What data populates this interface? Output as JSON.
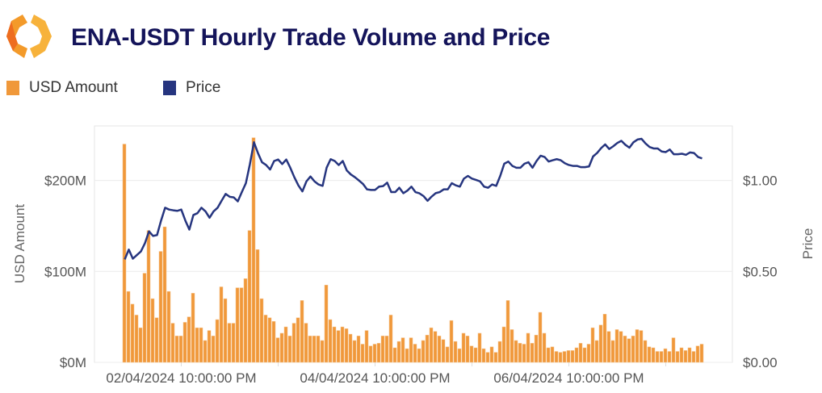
{
  "title": "ENA-USDT Hourly Trade Volume and Price",
  "legend": [
    {
      "label": "USD Amount",
      "color": "#f0983a"
    },
    {
      "label": "Price",
      "color": "#26357f"
    }
  ],
  "chart_data": {
    "type": "bar+line",
    "title": "ENA-USDT Hourly Trade Volume and Price",
    "ylabel_left": "USD Amount",
    "ylabel_right": "Price",
    "ylim_left": [
      0,
      260
    ],
    "ylim_right": [
      0,
      1.3
    ],
    "yticks_left": [
      {
        "value": 0,
        "label": "$0M"
      },
      {
        "value": 100,
        "label": "$100M"
      },
      {
        "value": 200,
        "label": "$200M"
      }
    ],
    "yticks_right": [
      {
        "value": 0,
        "label": "$0.00"
      },
      {
        "value": 0.5,
        "label": "$0.50"
      },
      {
        "value": 1.0,
        "label": "$1.00"
      }
    ],
    "xticks": [
      {
        "hour_index": 14,
        "label": "02/04/2024 10:00:00 PM"
      },
      {
        "hour_index": 62,
        "label": "04/04/2024 10:00:00 PM"
      },
      {
        "hour_index": 110,
        "label": "06/04/2024 10:00:00 PM"
      }
    ],
    "grid": "horizontal",
    "legend_position": "top-left",
    "series": [
      {
        "name": "USD Amount",
        "type": "bar",
        "unit": "USD millions",
        "color": "#f0983a",
        "values": [
          240,
          78,
          64,
          52,
          38,
          98,
          145,
          70,
          49,
          122,
          149,
          78,
          43,
          29,
          29,
          44,
          50,
          76,
          38,
          38,
          24,
          35,
          29,
          47,
          83,
          70,
          43,
          43,
          82,
          82,
          92,
          145,
          247,
          124,
          70,
          52,
          49,
          45,
          27,
          32,
          39,
          29,
          43,
          49,
          68,
          43,
          29,
          29,
          29,
          24,
          85,
          47,
          39,
          35,
          39,
          37,
          31,
          24,
          29,
          20,
          35,
          18,
          20,
          21,
          29,
          29,
          52,
          16,
          23,
          27,
          15,
          27,
          20,
          15,
          24,
          30,
          38,
          34,
          29,
          25,
          17,
          46,
          23,
          15,
          32,
          29,
          18,
          16,
          32,
          15,
          11,
          17,
          11,
          23,
          39,
          68,
          36,
          24,
          21,
          20,
          32,
          21,
          30,
          55,
          32,
          16,
          17,
          12,
          11,
          12,
          13,
          13,
          16,
          21,
          16,
          20,
          38,
          24,
          41,
          53,
          34,
          24,
          36,
          34,
          29,
          26,
          29,
          36,
          35,
          24,
          17,
          16,
          12,
          12,
          15,
          12,
          27,
          12,
          16,
          13,
          16,
          12,
          18,
          20
        ]
      },
      {
        "name": "Price",
        "type": "line",
        "unit": "USD",
        "color": "#26357f",
        "values": [
          0.566,
          0.62,
          0.57,
          0.59,
          0.61,
          0.655,
          0.72,
          0.695,
          0.7,
          0.78,
          0.85,
          0.84,
          0.836,
          0.833,
          0.84,
          0.78,
          0.73,
          0.81,
          0.82,
          0.85,
          0.83,
          0.795,
          0.83,
          0.85,
          0.889,
          0.926,
          0.91,
          0.907,
          0.885,
          0.936,
          0.985,
          1.09,
          1.21,
          1.15,
          1.1,
          1.085,
          1.06,
          1.107,
          1.115,
          1.09,
          1.115,
          1.07,
          1.018,
          0.973,
          0.94,
          0.995,
          1.022,
          0.995,
          0.978,
          0.97,
          1.07,
          1.117,
          1.107,
          1.085,
          1.107,
          1.055,
          1.033,
          1.018,
          1.0,
          0.981,
          0.951,
          0.948,
          0.948,
          0.966,
          0.969,
          0.988,
          0.936,
          0.936,
          0.96,
          0.93,
          0.944,
          0.966,
          0.936,
          0.929,
          0.914,
          0.888,
          0.911,
          0.93,
          0.936,
          0.951,
          0.951,
          0.985,
          0.973,
          0.966,
          1.01,
          1.025,
          1.01,
          1.003,
          0.995,
          0.966,
          0.96,
          0.978,
          0.97,
          1.025,
          1.092,
          1.104,
          1.08,
          1.07,
          1.07,
          1.092,
          1.1,
          1.07,
          1.107,
          1.136,
          1.129,
          1.104,
          1.111,
          1.117,
          1.111,
          1.095,
          1.085,
          1.08,
          1.08,
          1.073,
          1.073,
          1.077,
          1.132,
          1.151,
          1.178,
          1.198,
          1.173,
          1.188,
          1.206,
          1.218,
          1.196,
          1.18,
          1.21,
          1.225,
          1.229,
          1.203,
          1.184,
          1.176,
          1.176,
          1.159,
          1.156,
          1.17,
          1.144,
          1.144,
          1.147,
          1.141,
          1.154,
          1.151,
          1.129,
          1.121
        ]
      }
    ]
  }
}
